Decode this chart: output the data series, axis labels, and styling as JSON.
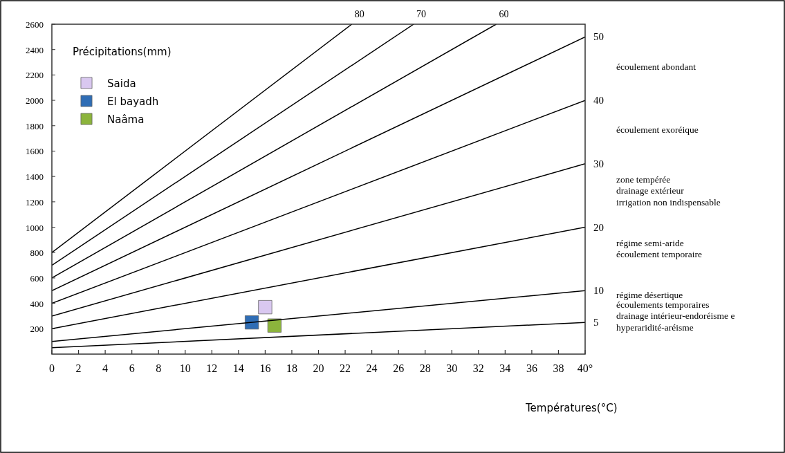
{
  "chart_data": {
    "type": "scatter",
    "ylabel": "Précipitations(mm)",
    "xlabel": "Températures(°C)",
    "xlim": [
      0,
      40
    ],
    "ylim": [
      0,
      2600
    ],
    "xticks": [
      0,
      2,
      4,
      6,
      8,
      10,
      12,
      14,
      16,
      18,
      20,
      22,
      24,
      26,
      28,
      30,
      32,
      34,
      36,
      38,
      {
        "value": 40,
        "label": "40°"
      }
    ],
    "yticks": [
      200,
      400,
      600,
      800,
      1000,
      1200,
      1400,
      1600,
      1800,
      2000,
      2200,
      2400,
      2600
    ],
    "grid": false,
    "legend": "top left",
    "marker": "square",
    "series": [
      {
        "name": "Saida",
        "color": "#d9c8f0",
        "x": [
          16
        ],
        "values": [
          370
        ]
      },
      {
        "name": "El bayadh",
        "color": "#2f6db5",
        "x": [
          15
        ],
        "values": [
          250
        ]
      },
      {
        "name": "Naâma",
        "color": "#8cb43c",
        "x": [
          16.7
        ],
        "values": [
          225
        ]
      },
      {
        "type": "line",
        "color": "#000000",
        "marker": "none",
        "x": [
          0,
          22.5
        ],
        "values": [
          800,
          2600
        ]
      },
      {
        "type": "line",
        "color": "#000000",
        "marker": "none",
        "x": [
          0,
          27.14
        ],
        "values": [
          700,
          2600
        ]
      },
      {
        "type": "line",
        "color": "#000000",
        "marker": "none",
        "x": [
          0,
          33.33
        ],
        "values": [
          600,
          2600
        ]
      },
      {
        "type": "line",
        "color": "#000000",
        "marker": "none",
        "x": [
          0,
          40
        ],
        "values": [
          500,
          2500
        ]
      },
      {
        "type": "line",
        "color": "#000000",
        "marker": "none",
        "x": [
          0,
          40
        ],
        "values": [
          400,
          2000
        ]
      },
      {
        "type": "line",
        "color": "#000000",
        "marker": "none",
        "x": [
          0,
          40
        ],
        "values": [
          300,
          1500
        ]
      },
      {
        "type": "line",
        "color": "#000000",
        "marker": "none",
        "x": [
          0,
          40
        ],
        "values": [
          200,
          1000
        ]
      },
      {
        "type": "line",
        "color": "#000000",
        "marker": "none",
        "x": [
          0,
          40
        ],
        "values": [
          100,
          500
        ]
      },
      {
        "type": "line",
        "color": "#000000",
        "marker": "none",
        "x": [
          0,
          40
        ],
        "values": [
          50,
          250
        ]
      }
    ],
    "annotations": [
      {
        "text": "80",
        "x": 22.5,
        "y": 2600
      },
      {
        "text": "70",
        "x": 27.14,
        "y": 2600
      },
      {
        "text": "60",
        "x": 33.33,
        "y": 2600
      },
      {
        "text": "50",
        "x": 40,
        "y": 2500
      },
      {
        "text": "40",
        "x": 40,
        "y": 2000
      },
      {
        "text": "30",
        "x": 40,
        "y": 1500
      },
      {
        "text": "20",
        "x": 40,
        "y": 1000
      },
      {
        "text": "10",
        "x": 40,
        "y": 500
      },
      {
        "text": "5",
        "x": 40,
        "y": 250
      },
      "écoulement abondant",
      "écoulement exoréique",
      "zone tempérée",
      "drainage extérieur",
      "irrigation non indispensable",
      "régime semi-aride",
      "écoulement temporaire",
      "régime désertique",
      "écoulements temporaires",
      "drainage intérieur-endoréisme e",
      "hyperaridité-aréisme"
    ]
  }
}
